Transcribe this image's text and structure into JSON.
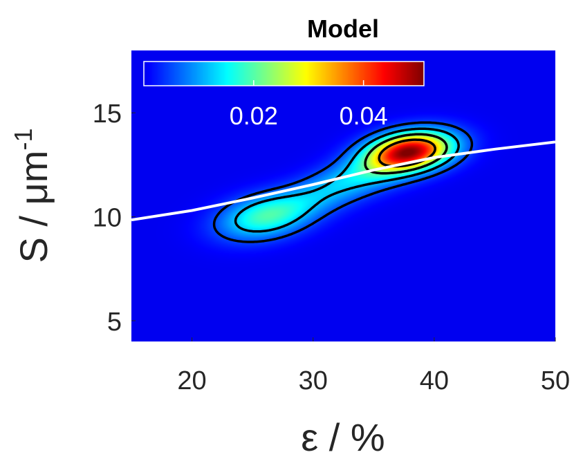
{
  "chart_data": {
    "type": "heatmap",
    "title": "Model",
    "xlabel": "ε / %",
    "ylabel_main": "S / μm",
    "ylabel_sup": "-1",
    "xlim": [
      15,
      50
    ],
    "ylim": [
      4,
      18
    ],
    "xticks": [
      20,
      30,
      40,
      50
    ],
    "yticks": [
      5,
      10,
      15
    ],
    "colormap": "jet",
    "colorbar": {
      "location": "top-inside",
      "range": [
        0,
        0.051
      ],
      "ticks": [
        0.02,
        0.04
      ],
      "tick_labels": [
        "0.02",
        "0.04"
      ]
    },
    "density_components": [
      {
        "cx": 26.0,
        "cy": 10.0,
        "sx": 2.6,
        "sy": 0.75,
        "rho": 0.3,
        "weight": 0.018
      },
      {
        "cx": 31.0,
        "cy": 11.2,
        "sx": 2.8,
        "sy": 0.85,
        "rho": 0.55,
        "weight": 0.009
      },
      {
        "cx": 38.0,
        "cy": 13.15,
        "sx": 2.4,
        "sy": 0.65,
        "rho": 0.25,
        "weight": 0.046
      },
      {
        "cx": 35.5,
        "cy": 12.3,
        "sx": 2.8,
        "sy": 0.8,
        "rho": 0.5,
        "weight": 0.01
      }
    ],
    "contour_levels": [
      0.005,
      0.012,
      0.022,
      0.034
    ],
    "fit_curve": {
      "color": "#ffffff",
      "x": [
        15,
        20,
        25,
        30,
        35,
        40,
        45,
        50
      ],
      "y": [
        9.85,
        10.3,
        10.9,
        11.55,
        12.25,
        12.85,
        13.25,
        13.6
      ]
    }
  }
}
